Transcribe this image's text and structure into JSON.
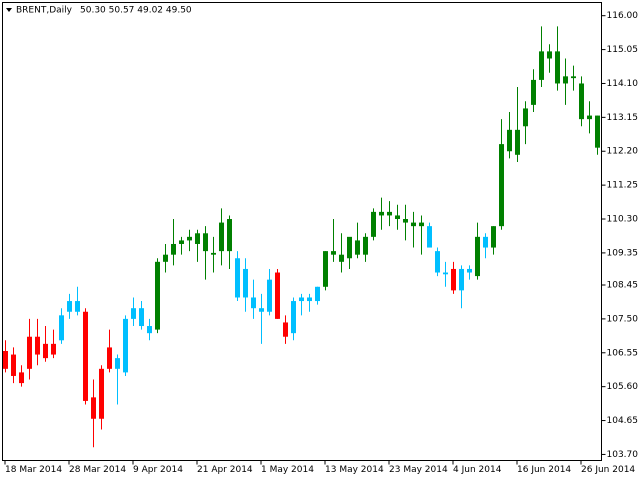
{
  "chart_data": {
    "type": "candlestick",
    "title": "BRENT,Daily",
    "subtitle": "50.30 50.57 49.02 49.50",
    "categories": [
      "18 Mar 2014",
      null,
      null,
      null,
      null,
      null,
      null,
      null,
      "28 Mar 2014",
      null,
      null,
      null,
      null,
      null,
      null,
      null,
      "9 Apr 2014",
      null,
      null,
      null,
      null,
      null,
      null,
      null,
      "21 Apr 2014",
      null,
      null,
      null,
      null,
      null,
      null,
      null,
      "1 May 2014",
      null,
      null,
      null,
      null,
      null,
      null,
      null,
      "13 May 2014",
      null,
      null,
      null,
      null,
      null,
      null,
      null,
      "23 May 2014",
      null,
      null,
      null,
      null,
      null,
      null,
      null,
      "4 Jun 2014",
      null,
      null,
      null,
      null,
      null,
      null,
      null,
      "16 Jun 2014",
      null,
      null,
      null,
      null,
      null,
      null,
      null,
      "26 Jun 2014",
      null,
      null
    ],
    "open": [
      106.6,
      106.5,
      106.0,
      107.0,
      107.0,
      106.8,
      106.8,
      106.9,
      107.7,
      107.7,
      107.7,
      105.3,
      106.1,
      106.7,
      106.1,
      106.0,
      107.5,
      107.8,
      107.3,
      107.2,
      109.1,
      109.3,
      109.6,
      109.7,
      109.6,
      109.4,
      109.3,
      109.4,
      109.4,
      109.2,
      108.9,
      108.1,
      107.8,
      107.7,
      108.8,
      107.4,
      107.1,
      108.0,
      108.0,
      108.0,
      108.4,
      109.3,
      109.1,
      109.2,
      109.3,
      109.3,
      109.8,
      110.4,
      110.4,
      110.3,
      110.2,
      110.1,
      110.1,
      110.1,
      109.4,
      108.8,
      108.9,
      108.3,
      108.8,
      108.7,
      109.5,
      109.5,
      110.1,
      112.2,
      112.1,
      112.9,
      113.5,
      114.2,
      114.8,
      114.1,
      114.1,
      114.25,
      113.1,
      113.1,
      112.3
    ],
    "high": [
      106.9,
      106.7,
      106.2,
      107.5,
      107.5,
      107.3,
      107.2,
      107.8,
      108.2,
      108.4,
      107.8,
      105.8,
      106.2,
      107.2,
      106.5,
      107.6,
      108.1,
      108.0,
      107.5,
      109.2,
      109.6,
      110.3,
      109.8,
      110.0,
      110.0,
      110.1,
      109.8,
      110.6,
      110.4,
      109.4,
      109.2,
      108.6,
      108.2,
      108.9,
      108.9,
      107.6,
      108.1,
      108.2,
      108.2,
      108.4,
      109.4,
      110.3,
      109.9,
      109.7,
      110.2,
      109.9,
      110.6,
      110.9,
      110.8,
      110.7,
      110.7,
      110.5,
      110.4,
      110.2,
      109.5,
      109.1,
      109.1,
      109.0,
      109.0,
      110.2,
      109.9,
      110.1,
      113.1,
      113.3,
      114.0,
      113.6,
      114.5,
      115.7,
      115.2,
      115.7,
      114.8,
      114.6,
      114.3,
      113.6,
      113.2
    ],
    "low": [
      106.0,
      105.7,
      105.6,
      105.8,
      106.2,
      106.3,
      106.4,
      106.8,
      107.5,
      107.6,
      105.1,
      103.9,
      104.4,
      106.0,
      105.1,
      105.9,
      107.3,
      107.2,
      106.9,
      107.1,
      108.8,
      109.0,
      109.3,
      109.4,
      109.1,
      108.6,
      108.8,
      109.0,
      108.9,
      108.0,
      107.7,
      107.5,
      106.8,
      107.6,
      107.5,
      106.8,
      106.9,
      107.6,
      107.7,
      107.9,
      108.3,
      109.1,
      108.8,
      108.9,
      109.2,
      109.1,
      109.7,
      110.0,
      110.1,
      110.0,
      109.7,
      109.5,
      109.3,
      109.5,
      108.7,
      108.4,
      108.2,
      107.8,
      108.6,
      108.6,
      109.2,
      109.3,
      110.0,
      112.0,
      111.9,
      112.4,
      113.3,
      114.0,
      114.4,
      113.9,
      113.5,
      113.9,
      112.9,
      112.7,
      112.1
    ],
    "close": [
      106.1,
      105.9,
      105.7,
      106.1,
      106.5,
      106.4,
      106.5,
      107.6,
      108.0,
      108.0,
      105.2,
      104.7,
      104.7,
      106.1,
      106.4,
      107.5,
      107.8,
      107.3,
      107.1,
      109.1,
      109.3,
      109.6,
      109.7,
      109.8,
      109.9,
      109.9,
      109.35,
      110.2,
      110.3,
      108.1,
      108.1,
      107.8,
      107.7,
      108.6,
      107.5,
      107.0,
      108.0,
      108.1,
      108.1,
      108.4,
      109.4,
      109.4,
      109.3,
      109.8,
      109.7,
      109.8,
      110.5,
      110.5,
      110.5,
      110.4,
      110.3,
      110.2,
      110.2,
      109.5,
      108.8,
      108.75,
      108.3,
      108.9,
      108.9,
      109.8,
      109.8,
      110.1,
      112.4,
      112.8,
      112.8,
      113.4,
      114.2,
      115.0,
      115.0,
      115.0,
      114.3,
      114.3,
      114.1,
      113.2,
      113.2
    ],
    "colors": [
      "#ff0000",
      "#ff0000",
      "#ff0000",
      "#ff0000",
      "#ff0000",
      "#ff0000",
      "#ff0000",
      "#00bfff",
      "#00bfff",
      "#00bfff",
      "#ff0000",
      "#ff0000",
      "#ff0000",
      "#ff0000",
      "#00bfff",
      "#00bfff",
      "#00bfff",
      "#00bfff",
      "#00bfff",
      "#008000",
      "#008000",
      "#008000",
      "#008000",
      "#008000",
      "#008000",
      "#008000",
      "#008000",
      "#008000",
      "#008000",
      "#00bfff",
      "#00bfff",
      "#00bfff",
      "#00bfff",
      "#00bfff",
      "#ff0000",
      "#ff0000",
      "#00bfff",
      "#00bfff",
      "#00bfff",
      "#00bfff",
      "#008000",
      "#008000",
      "#008000",
      "#008000",
      "#008000",
      "#008000",
      "#008000",
      "#008000",
      "#008000",
      "#008000",
      "#008000",
      "#008000",
      "#008000",
      "#00bfff",
      "#00bfff",
      "#00bfff",
      "#ff0000",
      "#00bfff",
      "#00bfff",
      "#008000",
      "#00bfff",
      "#008000",
      "#008000",
      "#008000",
      "#008000",
      "#008000",
      "#008000",
      "#008000",
      "#008000",
      "#008000",
      "#008000",
      "#008000",
      "#008000",
      "#008000",
      "#008000"
    ],
    "ylim": [
      103.53,
      116.37
    ],
    "yticks": [
      {
        "value": 116.0,
        "label": "116.00"
      },
      {
        "value": 115.05,
        "label": "115.05"
      },
      {
        "value": 114.1,
        "label": "114.10"
      },
      {
        "value": 113.15,
        "label": "113.15"
      },
      {
        "value": 112.2,
        "label": "112.20"
      },
      {
        "value": 111.25,
        "label": "111.25"
      },
      {
        "value": 110.3,
        "label": "110.30"
      },
      {
        "value": 109.35,
        "label": "109.35"
      },
      {
        "value": 108.45,
        "label": "108.45"
      },
      {
        "value": 107.5,
        "label": "107.50"
      },
      {
        "value": 106.55,
        "label": "106.55"
      },
      {
        "value": 105.6,
        "label": "105.60"
      },
      {
        "value": 104.65,
        "label": "104.65"
      },
      {
        "value": 103.7,
        "label": "103.70"
      }
    ]
  }
}
